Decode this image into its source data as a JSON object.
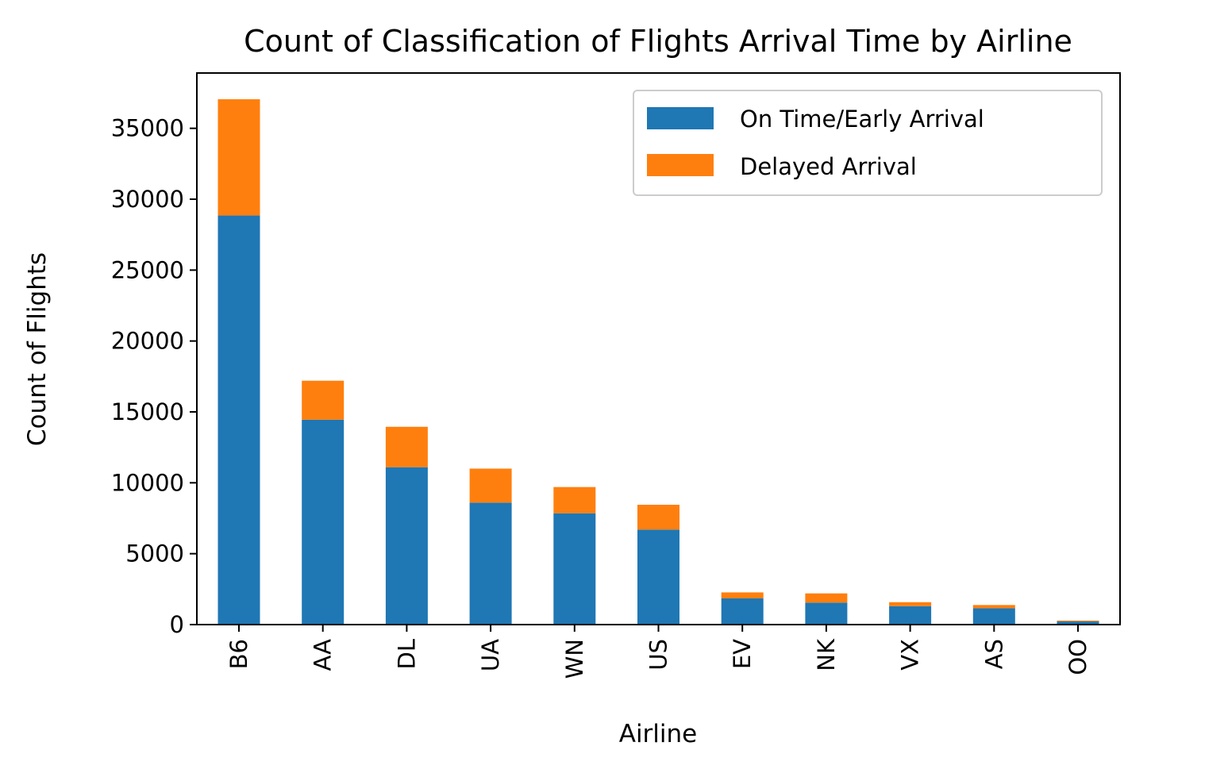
{
  "chart_data": {
    "type": "bar",
    "stacked": true,
    "title": "Count of Classification of Flights Arrival Time by Airline",
    "xlabel": "Airline",
    "ylabel": "Count of Flights",
    "categories": [
      "B6",
      "AA",
      "DL",
      "UA",
      "WN",
      "US",
      "EV",
      "NK",
      "VX",
      "AS",
      "OO"
    ],
    "series": [
      {
        "name": "On Time/Early Arrival",
        "color": "#1f77b4",
        "values": [
          28850,
          14450,
          11100,
          8600,
          7850,
          6700,
          1850,
          1550,
          1300,
          1150,
          220
        ]
      },
      {
        "name": "Delayed Arrival",
        "color": "#ff7f0e",
        "values": [
          8200,
          2750,
          2850,
          2400,
          1850,
          1750,
          420,
          650,
          280,
          230,
          60
        ]
      }
    ],
    "yticks": [
      0,
      5000,
      10000,
      15000,
      20000,
      25000,
      30000,
      35000
    ],
    "ylim": [
      0,
      38900
    ],
    "legend_position": "top-right",
    "grid": false
  }
}
